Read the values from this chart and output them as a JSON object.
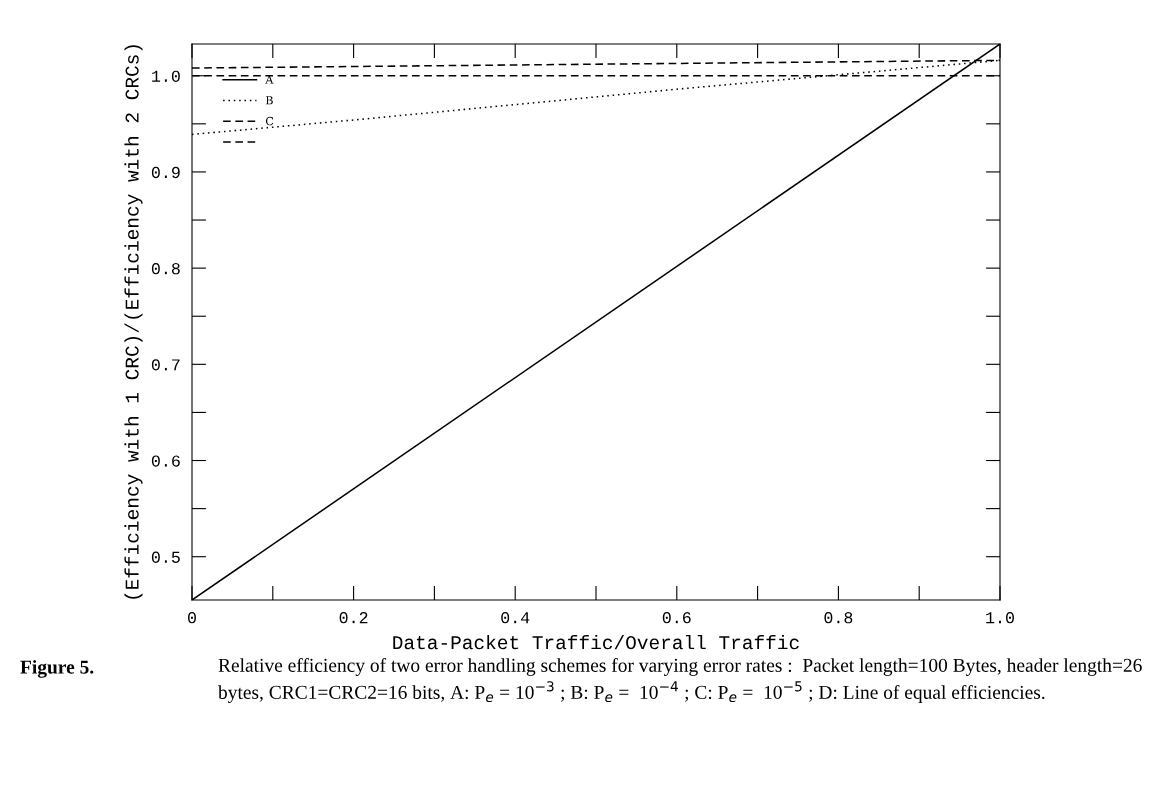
{
  "chart_data": {
    "type": "line",
    "xlabel": "Data-Packet Traffic/Overall Traffic",
    "ylabel": "(Efficiency with 1 CRC)/(Efficiency with 2 CRCs)",
    "annotations": [
      "Figure 5.",
      "Relative efficiency of two error handling schemes for varying error rates :  Packet length=100 Bytes, header length=26 bytes, CRC1=CRC2=16 bits, A: P$_{e}$ = 10$^{−3}$ ; B: P$_{e}$ =  10$^{−4}$ ; C: P$_{e}$ =  10$^{−5}$ ; D: Line of equal efficiencies."
    ],
    "xlim": [
      0,
      1.0
    ],
    "ylim": [
      0.455,
      1.033
    ],
    "xticks": [
      0,
      {
        "value": 0.1,
        "label": null
      },
      0.2,
      {
        "value": 0.3,
        "label": null
      },
      0.4,
      {
        "value": 0.5,
        "label": null
      },
      0.6,
      {
        "value": 0.7,
        "label": null
      },
      0.8,
      {
        "value": 0.9,
        "label": null
      },
      {
        "value": 1,
        "label": "1.0"
      }
    ],
    "yticks": [
      0.5,
      {
        "value": 0.55,
        "label": null
      },
      0.6,
      {
        "value": 0.65,
        "label": null
      },
      0.7,
      {
        "value": 0.75,
        "label": null
      },
      0.8,
      {
        "value": 0.85,
        "label": null
      },
      0.9,
      {
        "value": 0.95,
        "label": null
      },
      {
        "value": 1,
        "label": "1.0"
      }
    ],
    "grid": false,
    "legend": "top left",
    "marker": "none",
    "series": [
      {
        "name": "A",
        "color": "#000000",
        "line_style": "solid",
        "x": [
          0,
          1.0
        ],
        "values": [
          0.455,
          1.033
        ]
      },
      {
        "name": "B",
        "color": "#000000",
        "line_style": "dotted",
        "x": [
          0,
          0.2,
          0.4,
          0.6,
          0.8,
          1.0
        ],
        "values": [
          0.939,
          0.954,
          0.97,
          0.986,
          1.001,
          1.016
        ]
      },
      {
        "name": "C",
        "color": "#000000",
        "line_style": "dashed",
        "x": [
          0,
          1.0
        ],
        "values": [
          1.008,
          1.016
        ]
      },
      {
        "color": "#000000",
        "line_style": "dashed",
        "x": [
          0,
          1.0
        ],
        "values": [
          1.0,
          1.0
        ]
      }
    ]
  }
}
